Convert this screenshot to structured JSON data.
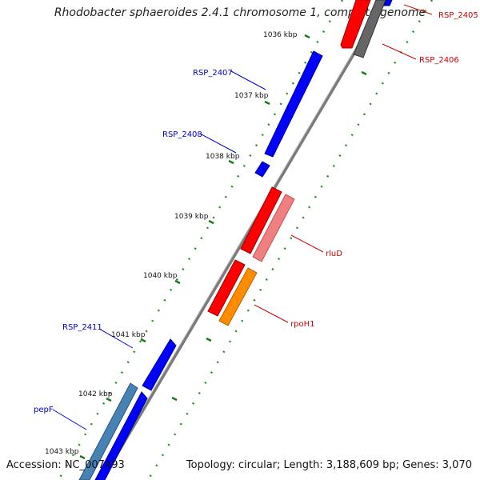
{
  "title": "Rhodobacter sphaeroides 2.4.1 chromosome 1, complete genome",
  "accession": "Accession: NC_007493",
  "summary": "Topology: circular; Length: 3,188,609 bp; Genes: 3,070",
  "colors": {
    "backbone": "#7a7a7a",
    "tick_major": "#1a7a1a",
    "tick_minor": "#2e8b2e",
    "blue_label": "#0000cc",
    "red_label": "#cc0000"
  },
  "kbp_labels": [
    "1036 kbp",
    "1037 kbp",
    "1038 kbp",
    "1039 kbp",
    "1040 kbp",
    "1041 kbp",
    "1042 kbp",
    "1043 kbp"
  ],
  "gene_labels": {
    "RSP_2405": "RSP_2405",
    "RSP_2406": "RSP_2406",
    "RSP_2407": "RSP_2407",
    "RSP_2408": "RSP_2408",
    "rluD": "rluD",
    "rpoH1": "rpoH1",
    "RSP_2411": "RSP_2411",
    "pepF": "pepF"
  }
}
